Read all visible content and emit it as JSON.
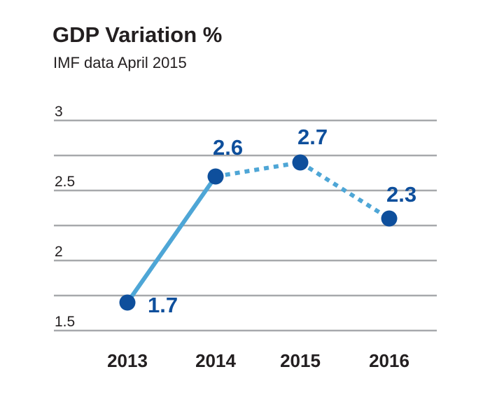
{
  "chart_data": {
    "type": "line",
    "title": "GDP Variation %",
    "subtitle": "IMF data April 2015",
    "categories": [
      "2013",
      "2014",
      "2015",
      "2016"
    ],
    "values": [
      1.7,
      2.6,
      2.7,
      2.3
    ],
    "value_labels": [
      "1.7",
      "2.6",
      "2.7",
      "2.3"
    ],
    "line_style": [
      "solid",
      "dotted",
      "dotted"
    ],
    "yticks": [
      "3",
      "2.5",
      "2",
      "1.5"
    ],
    "ytick_values": [
      3,
      2.5,
      2,
      1.5
    ],
    "ylim": [
      1.5,
      3
    ],
    "grid": true,
    "colors": {
      "line": "#4ea6d6",
      "marker": "#0e4f9c",
      "labels": "#0e4f9c",
      "grid": "#a7a9ac"
    }
  }
}
